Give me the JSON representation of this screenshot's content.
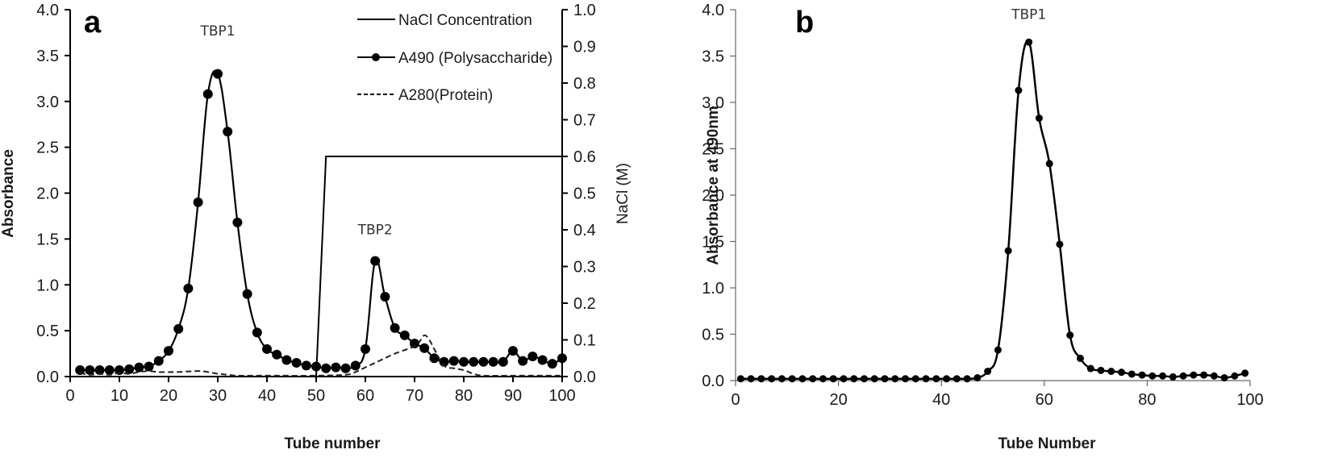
{
  "chart_data": [
    {
      "type": "line",
      "panel": "a",
      "xlabel": "Tube number",
      "ylabel": "Absorbance",
      "y2label": "NaCl (M)",
      "xlim": [
        0,
        100
      ],
      "ylim": [
        0,
        4.0
      ],
      "y2lim": [
        0,
        1.0
      ],
      "xticks": [
        0,
        10,
        20,
        30,
        40,
        50,
        60,
        70,
        80,
        90,
        100
      ],
      "yticks": [
        "0.0",
        "0.5",
        "1.0",
        "1.5",
        "2.0",
        "2.5",
        "3.0",
        "3.5",
        "4.0"
      ],
      "y2ticks": [
        "0.0",
        "0.1",
        "0.2",
        "0.3",
        "0.4",
        "0.5",
        "0.6",
        "0.7",
        "0.8",
        "0.9",
        "1.0"
      ],
      "grid": false,
      "legend_position": "top-center",
      "annotations": [
        {
          "text": "TBP1",
          "x": 30,
          "y": 3.72
        },
        {
          "text": "TBP2",
          "x": 62,
          "y": 1.55
        }
      ],
      "series": [
        {
          "name": "NaCl Concentration",
          "style": "solid",
          "axis": "right",
          "x": [
            0,
            50,
            52,
            100
          ],
          "values": [
            0,
            0,
            0.6,
            0.6
          ]
        },
        {
          "name": "A490 (Polysaccharide)",
          "style": "solid-markers",
          "axis": "left",
          "x": [
            2,
            4,
            6,
            8,
            10,
            12,
            14,
            16,
            18,
            20,
            22,
            24,
            26,
            28,
            30,
            32,
            34,
            36,
            38,
            40,
            42,
            44,
            46,
            48,
            50,
            52,
            54,
            56,
            58,
            60,
            62,
            64,
            66,
            68,
            70,
            72,
            74,
            76,
            78,
            80,
            82,
            84,
            86,
            88,
            90,
            92,
            94,
            96,
            98,
            100
          ],
          "values": [
            0.07,
            0.07,
            0.07,
            0.07,
            0.07,
            0.08,
            0.1,
            0.11,
            0.17,
            0.28,
            0.52,
            0.96,
            1.9,
            3.08,
            3.3,
            2.67,
            1.68,
            0.9,
            0.48,
            0.3,
            0.24,
            0.18,
            0.15,
            0.12,
            0.11,
            0.09,
            0.1,
            0.09,
            0.12,
            0.3,
            1.26,
            0.87,
            0.53,
            0.45,
            0.36,
            0.31,
            0.2,
            0.16,
            0.17,
            0.16,
            0.16,
            0.16,
            0.16,
            0.16,
            0.28,
            0.17,
            0.22,
            0.18,
            0.14,
            0.2
          ]
        },
        {
          "name": "A280(Protein)",
          "style": "dashed",
          "axis": "left",
          "x": [
            2,
            4,
            6,
            8,
            10,
            12,
            14,
            16,
            18,
            22,
            26,
            28,
            30,
            32,
            34,
            40,
            50,
            56,
            58,
            60,
            62,
            66,
            70,
            71,
            72,
            73,
            74,
            76,
            78,
            80,
            82,
            84,
            90,
            100
          ],
          "values": [
            0.04,
            0.02,
            0.03,
            0.02,
            0.04,
            0.03,
            0.05,
            0.06,
            0.05,
            0.05,
            0.06,
            0.05,
            0.03,
            0.02,
            0.01,
            0.01,
            0.01,
            0.02,
            0.05,
            0.1,
            0.15,
            0.25,
            0.33,
            0.38,
            0.45,
            0.4,
            0.3,
            0.12,
            0.09,
            0.07,
            0.03,
            0.01,
            0.01,
            0.01
          ]
        }
      ]
    },
    {
      "type": "line",
      "panel": "b",
      "xlabel": "Tube Number",
      "ylabel": "Absorbance at 490nm",
      "xlim": [
        0,
        100
      ],
      "ylim": [
        0,
        4.0
      ],
      "xticks": [
        0,
        20,
        40,
        60,
        80,
        100
      ],
      "yticks": [
        "0.0",
        "0.5",
        "1.0",
        "1.5",
        "2.0",
        "2.5",
        "3.0",
        "3.5",
        "4.0"
      ],
      "grid": false,
      "annotations": [
        {
          "text": "TBP1",
          "x": 57,
          "y": 3.9
        }
      ],
      "series": [
        {
          "name": "A490",
          "style": "solid-markers",
          "x": [
            1,
            3,
            5,
            7,
            9,
            11,
            13,
            15,
            17,
            19,
            21,
            23,
            25,
            27,
            29,
            31,
            33,
            35,
            37,
            39,
            41,
            43,
            45,
            47,
            49,
            51,
            53,
            55,
            57,
            59,
            61,
            63,
            65,
            67,
            69,
            71,
            73,
            75,
            77,
            79,
            81,
            83,
            85,
            87,
            89,
            91,
            93,
            95,
            97,
            99
          ],
          "values": [
            0.02,
            0.02,
            0.02,
            0.02,
            0.02,
            0.02,
            0.02,
            0.02,
            0.02,
            0.02,
            0.02,
            0.02,
            0.02,
            0.02,
            0.02,
            0.02,
            0.02,
            0.02,
            0.02,
            0.02,
            0.02,
            0.02,
            0.02,
            0.03,
            0.1,
            0.33,
            1.4,
            3.13,
            3.65,
            2.83,
            2.34,
            1.47,
            0.49,
            0.24,
            0.13,
            0.11,
            0.1,
            0.09,
            0.07,
            0.06,
            0.05,
            0.05,
            0.04,
            0.05,
            0.06,
            0.06,
            0.05,
            0.03,
            0.05,
            0.08
          ]
        }
      ]
    }
  ],
  "labels": {
    "panel_a": "a",
    "panel_b": "b"
  }
}
